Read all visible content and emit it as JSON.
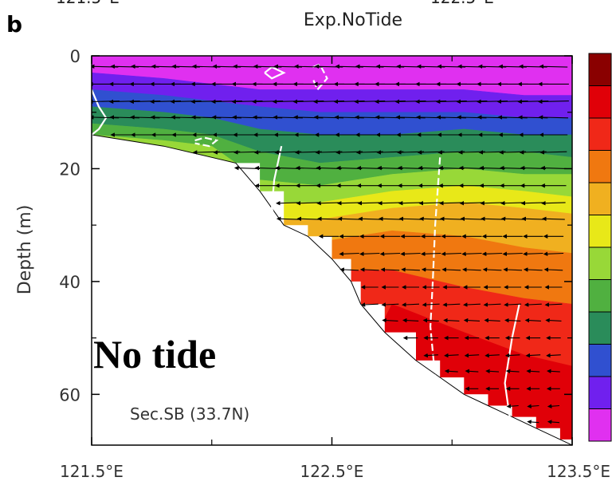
{
  "figure": {
    "panel_letter": "b",
    "top_cut_labels": [
      "121.5°E",
      "122.5°E"
    ],
    "overlay_label": "No tide",
    "section_label": "Sec.SB (33.7N)"
  },
  "colors": {
    "depth_bands": [
      "#e030f0",
      "#7020ee",
      "#3050d0",
      "#2a8c5a",
      "#50b040",
      "#98d838",
      "#e8e818",
      "#f0b020",
      "#f07810",
      "#f02818",
      "#e00008",
      "#8a0000"
    ],
    "arrow": "#000000",
    "contour": "#ffffff",
    "frame": "#000000"
  },
  "chart_data": {
    "type": "heatmap",
    "title": "Exp.NoTide",
    "xlabel": "",
    "ylabel": "Depth (m)",
    "xlim": [
      121.5,
      123.5
    ],
    "ylim": [
      0,
      69
    ],
    "y_inverted": true,
    "x_ticks": [
      121.5,
      122.5,
      123.5
    ],
    "x_tick_labels": [
      "121.5°E",
      "122.5°E",
      "123.5°E"
    ],
    "y_ticks": [
      0,
      20,
      40,
      60
    ],
    "y_tick_labels": [
      "0",
      "20",
      "40",
      "60"
    ],
    "colorbar_levels": 12,
    "colorbar_ticks": false,
    "overlay": "velocity vectors (mostly westward) and white temperature contours",
    "seabed_profile": [
      [
        121.5,
        14
      ],
      [
        121.8,
        16
      ],
      [
        122.0,
        18
      ],
      [
        122.1,
        19
      ],
      [
        122.2,
        24
      ],
      [
        122.3,
        30
      ],
      [
        122.4,
        32
      ],
      [
        122.5,
        36
      ],
      [
        122.58,
        40
      ],
      [
        122.62,
        44
      ],
      [
        122.72,
        49
      ],
      [
        122.85,
        54
      ],
      [
        122.95,
        57
      ],
      [
        123.05,
        60
      ],
      [
        123.15,
        62
      ],
      [
        123.25,
        64
      ],
      [
        123.35,
        66
      ],
      [
        123.45,
        68
      ],
      [
        123.5,
        69
      ]
    ],
    "band_boundaries": [
      [
        121.5,
        3,
        6,
        9,
        12,
        14
      ],
      [
        121.8,
        4,
        7,
        10,
        13,
        15,
        16
      ],
      [
        122.0,
        5,
        8,
        11,
        14,
        16,
        18
      ],
      [
        122.2,
        6,
        9,
        13,
        17,
        22,
        26,
        29,
        32
      ],
      [
        122.45,
        6,
        10,
        14,
        19,
        23,
        26,
        29,
        33,
        38
      ],
      [
        122.75,
        6,
        10,
        14,
        18,
        21,
        24,
        27,
        31,
        38,
        44
      ],
      [
        123.05,
        6,
        10,
        13,
        17,
        20,
        23,
        26,
        32,
        41,
        49
      ],
      [
        123.3,
        7,
        11,
        14,
        17,
        21,
        24,
        27,
        34,
        43,
        53
      ],
      [
        123.5,
        7,
        11,
        14,
        18,
        21,
        25,
        28,
        35,
        44,
        55
      ]
    ],
    "arrow_rows_depth": [
      2,
      5,
      8,
      11,
      14,
      17,
      20,
      23,
      26,
      29,
      32,
      35,
      38,
      41,
      44,
      47,
      50,
      53,
      56,
      59,
      62,
      65
    ],
    "arrow_u": [
      -0.9,
      -1.0,
      -1.0,
      -0.95,
      -0.9,
      -0.85,
      -0.8,
      -0.8,
      -0.75,
      -0.7,
      -0.6,
      -0.6,
      -0.55,
      -0.5,
      -0.5,
      -0.45,
      -0.4,
      -0.4,
      -0.35,
      -0.35,
      -0.3,
      -0.3
    ],
    "contours": [
      [
        [
          121.5,
          6
        ],
        [
          121.53,
          9
        ],
        [
          121.56,
          11
        ],
        [
          121.53,
          13
        ],
        [
          121.5,
          14
        ]
      ],
      [
        [
          121.93,
          15
        ],
        [
          121.97,
          14.5
        ],
        [
          122.02,
          15
        ],
        [
          121.99,
          16
        ],
        [
          121.93,
          15.5
        ]
      ],
      [
        [
          122.22,
          3
        ],
        [
          122.25,
          2
        ],
        [
          122.3,
          3
        ],
        [
          122.25,
          4
        ],
        [
          122.22,
          3
        ]
      ],
      [
        [
          122.42,
          2
        ],
        [
          122.45,
          1.5
        ],
        [
          122.48,
          4
        ],
        [
          122.44,
          6
        ],
        [
          122.42,
          4
        ]
      ],
      [
        [
          122.29,
          16
        ],
        [
          122.26,
          22
        ],
        [
          122.25,
          27
        ],
        [
          122.27,
          30
        ],
        [
          122.3,
          32
        ]
      ],
      [
        [
          122.95,
          18
        ],
        [
          122.93,
          30
        ],
        [
          122.92,
          40
        ],
        [
          122.91,
          48
        ],
        [
          122.93,
          57
        ]
      ],
      [
        [
          123.28,
          44
        ],
        [
          123.25,
          50
        ],
        [
          123.22,
          58
        ],
        [
          123.24,
          64
        ],
        [
          123.3,
          66
        ]
      ]
    ]
  }
}
